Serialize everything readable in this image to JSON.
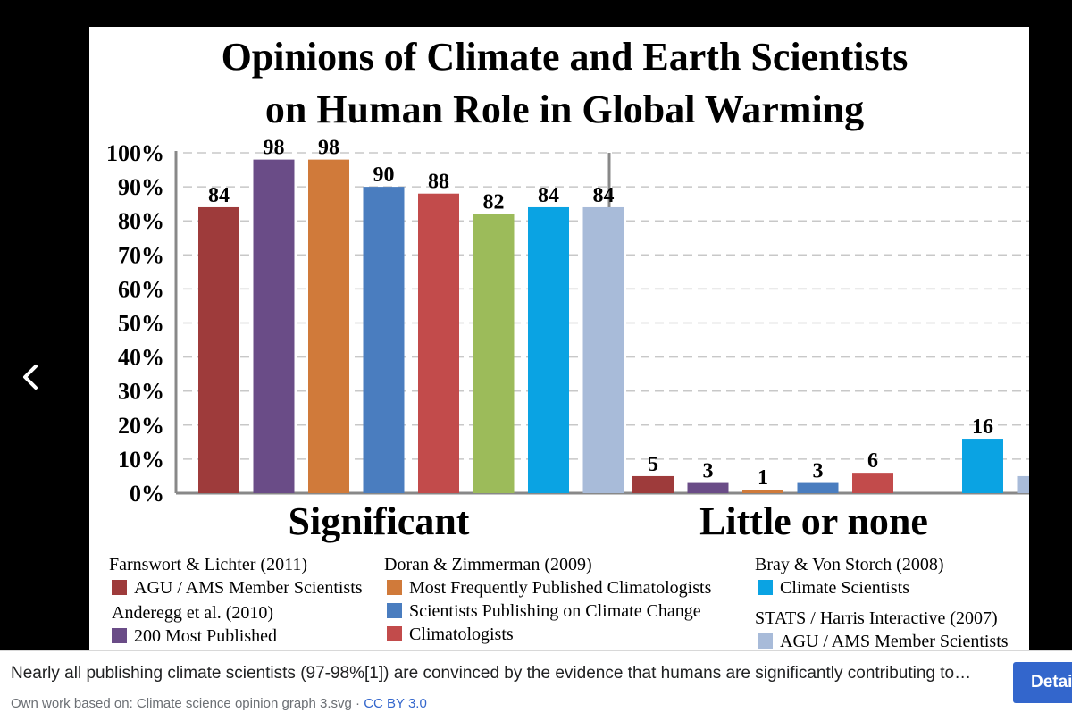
{
  "viewer": {
    "back_icon": "chevron-left-icon"
  },
  "chart_data": {
    "type": "bar",
    "title_line1": "Opinions of Climate and Earth Scientists",
    "title_line2": "on Human Role in Global Warming",
    "groups": [
      "Significant",
      "Little or none"
    ],
    "y_ticks": [
      "0%",
      "10%",
      "20%",
      "30%",
      "40%",
      "50%",
      "60%",
      "70%",
      "80%",
      "90%",
      "100%"
    ],
    "ylim": [
      0,
      100
    ],
    "grid": true,
    "series": [
      {
        "name": "AGU / AMS Member Scientists",
        "color": "#9e3b3b",
        "values": [
          84,
          5
        ]
      },
      {
        "name": "200 Most Published",
        "color": "#6a4c87",
        "values": [
          98,
          3
        ]
      },
      {
        "name": "Most Frequently Published Climatologists",
        "color": "#d07a3a",
        "values": [
          98,
          1
        ]
      },
      {
        "name": "Scientists Publishing on Climate Change",
        "color": "#4a7dbf",
        "values": [
          90,
          3
        ]
      },
      {
        "name": "Climatologists",
        "color": "#c24b4b",
        "values": [
          88,
          6
        ]
      },
      {
        "name": "",
        "color": "#9cbb5a",
        "values": [
          82,
          null
        ]
      },
      {
        "name": "Climate Scientists",
        "color": "#0aa3e3",
        "values": [
          84,
          16
        ]
      },
      {
        "name": "AGU / AMS Member Scientists",
        "color": "#a8bbd9",
        "values": [
          84,
          5
        ]
      }
    ],
    "legend": [
      {
        "source": "Farnswort & Lichter (2011)",
        "items": [
          {
            "label": "AGU / AMS Member Scientists",
            "color": "#9e3b3b"
          }
        ]
      },
      {
        "source": "Anderegg et al. (2010)",
        "items": [
          {
            "label": "200 Most Published",
            "color": "#6a4c87"
          }
        ]
      },
      {
        "source": "Doran & Zimmerman (2009)",
        "items": [
          {
            "label": "Most Frequently Published Climatologists",
            "color": "#d07a3a"
          },
          {
            "label": "Scientists Publishing on Climate Change",
            "color": "#4a7dbf"
          },
          {
            "label": "Climatologists",
            "color": "#c24b4b"
          }
        ]
      },
      {
        "source": "Bray & Von Storch (2008)",
        "items": [
          {
            "label": "Climate Scientists",
            "color": "#0aa3e3"
          }
        ]
      },
      {
        "source": "STATS / Harris Interactive (2007)",
        "items": [
          {
            "label": "AGU / AMS Member Scientists",
            "color": "#a8bbd9"
          }
        ]
      }
    ]
  },
  "caption": {
    "text": "Nearly all publishing climate scientists (97-98%[1]) are convinced by the evidence that humans are significantly contributing to…",
    "credit_prefix": "Own work based on: Climate science opinion graph 3.svg · ",
    "license": "CC BY 3.0",
    "details_button": "Details"
  }
}
